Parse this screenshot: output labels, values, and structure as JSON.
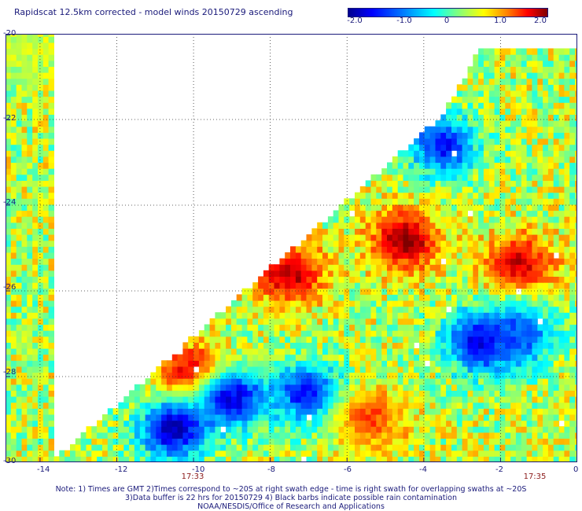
{
  "title": "Rapidscat 12.5km corrected - model winds 20150729 ascending",
  "colorbar": {
    "ticks": [
      "-2.0",
      "-1.0",
      "0",
      "1.0",
      "2.0"
    ],
    "tick_values": [
      -2.0,
      -1.0,
      0,
      1.0,
      2.0
    ],
    "range": [
      -2.2,
      2.0
    ]
  },
  "times": {
    "left": "17:33",
    "right": "17:35"
  },
  "notes": [
    "Note: 1) Times are GMT 2)Times correspond to ~20S at right swath edge - time is right swath for overlapping swaths at ~20S",
    "3)Data buffer is 22 hrs for 20150729 4) Black barbs indicate possible rain contamination",
    "NOAA/NESDIS/Office of Research and Applications"
  ],
  "chart_data": {
    "type": "heatmap",
    "title": "Rapidscat 12.5km corrected - model winds 20150729 ascending",
    "xlim": [
      -14.9,
      0
    ],
    "ylim": [
      -30,
      -20
    ],
    "x_ticks": [
      -14,
      -12,
      -10,
      -8,
      -6,
      -4,
      -2,
      0
    ],
    "x_tick_labels": [
      "-14",
      "-12",
      "-10",
      "-8",
      "-6",
      "-4",
      "-2",
      "0"
    ],
    "y_ticks": [
      -20,
      -22,
      -24,
      -26,
      -28,
      -30
    ],
    "y_tick_labels": [
      "-20",
      "-22",
      "-24",
      "-26",
      "-28",
      "-30"
    ],
    "grid": true,
    "color_scale": {
      "min": -2.2,
      "max": 2.0,
      "colors": [
        "#00008f",
        "#0000ff",
        "#007fff",
        "#00ffff",
        "#7fff7f",
        "#ffff00",
        "#ff7f00",
        "#ff0000",
        "#7f0000"
      ]
    },
    "swath_edge": [
      [
        -13.7,
        -30
      ],
      [
        -3.5,
        -21.9
      ],
      [
        -2.5,
        -20.3
      ],
      [
        0,
        -20.3
      ]
    ],
    "features": [
      {
        "lon": -4.5,
        "lat": -24.8,
        "value": 1.9
      },
      {
        "lon": -7.5,
        "lat": -25.6,
        "value": 1.8
      },
      {
        "lon": -10.0,
        "lat": -28.0,
        "value": 2.0
      },
      {
        "lon": -1.5,
        "lat": -25.4,
        "value": 1.7
      },
      {
        "lon": -10.5,
        "lat": -29.2,
        "value": -2.0
      },
      {
        "lon": -9.0,
        "lat": -28.5,
        "value": -1.8
      },
      {
        "lon": -7.0,
        "lat": -28.4,
        "value": -1.7
      },
      {
        "lon": -2.5,
        "lat": -27.2,
        "value": -1.9
      },
      {
        "lon": -3.5,
        "lat": -22.6,
        "value": -1.6
      },
      {
        "lon": -1.5,
        "lat": -27.0,
        "value": -1.4
      },
      {
        "lon": -5.4,
        "lat": -29.0,
        "value": 1.2
      },
      {
        "lon": -14.5,
        "lat": -20.4,
        "value": 0.2
      }
    ]
  }
}
